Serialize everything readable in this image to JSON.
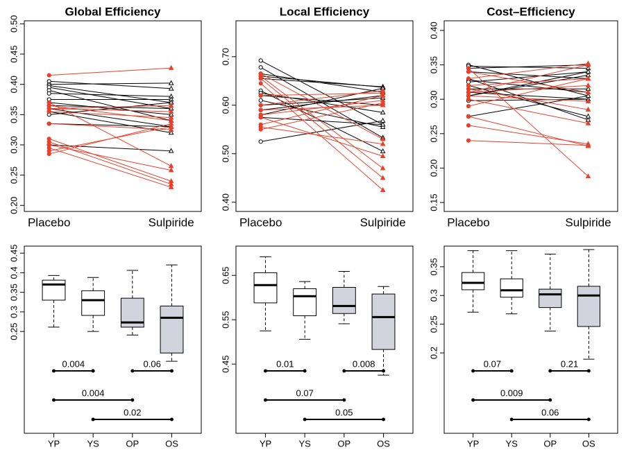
{
  "chart_data": [
    {
      "type": "slope",
      "title": "Global Efficiency",
      "categories": [
        "Placebo",
        "Sulpiride"
      ],
      "ylim": [
        0.19,
        0.505
      ],
      "yticks": [
        {
          "value": 0.2,
          "label": "0.20"
        },
        0.25,
        {
          "value": 0.3,
          "label": "0.30"
        },
        0.35,
        {
          "value": 0.4,
          "label": "0.40"
        },
        0.45,
        {
          "value": 0.5,
          "label": "0.50"
        }
      ],
      "series": [
        {
          "color": "#000000",
          "filled": false,
          "values": [
            0.405,
            0.393
          ]
        },
        {
          "color": "#000000",
          "filled": false,
          "values": [
            0.4,
            0.402
          ]
        },
        {
          "color": "#000000",
          "filled": false,
          "values": [
            0.398,
            0.37
          ]
        },
        {
          "color": "#000000",
          "filled": false,
          "values": [
            0.395,
            0.36
          ]
        },
        {
          "color": "#000000",
          "filled": false,
          "values": [
            0.39,
            0.34
          ]
        },
        {
          "color": "#000000",
          "filled": false,
          "values": [
            0.385,
            0.38
          ]
        },
        {
          "color": "#000000",
          "filled": false,
          "values": [
            0.375,
            0.375
          ]
        },
        {
          "color": "#000000",
          "filled": false,
          "values": [
            0.37,
            0.35
          ]
        },
        {
          "color": "#000000",
          "filled": false,
          "values": [
            0.36,
            0.33
          ]
        },
        {
          "color": "#000000",
          "filled": false,
          "values": [
            0.355,
            0.32
          ]
        },
        {
          "color": "#000000",
          "filled": false,
          "values": [
            0.35,
            0.37
          ]
        },
        {
          "color": "#000000",
          "filled": false,
          "values": [
            0.335,
            0.33
          ]
        },
        {
          "color": "#000000",
          "filled": false,
          "values": [
            0.3,
            0.29
          ]
        },
        {
          "color": "#000000",
          "filled": false,
          "values": [
            0.365,
            0.36
          ]
        },
        {
          "color": "#e8402a",
          "filled": true,
          "values": [
            0.415,
            0.427
          ]
        },
        {
          "color": "#e8402a",
          "filled": true,
          "values": [
            0.37,
            0.265
          ]
        },
        {
          "color": "#e8402a",
          "filled": true,
          "values": [
            0.365,
            0.34
          ]
        },
        {
          "color": "#e8402a",
          "filled": true,
          "values": [
            0.36,
            0.365
          ]
        },
        {
          "color": "#e8402a",
          "filled": true,
          "values": [
            0.355,
            0.345
          ]
        },
        {
          "color": "#e8402a",
          "filled": true,
          "values": [
            0.335,
            0.325
          ]
        },
        {
          "color": "#e8402a",
          "filled": true,
          "values": [
            0.31,
            0.24
          ]
        },
        {
          "color": "#e8402a",
          "filled": true,
          "values": [
            0.305,
            0.235
          ]
        },
        {
          "color": "#e8402a",
          "filled": true,
          "values": [
            0.3,
            0.258
          ]
        },
        {
          "color": "#e8402a",
          "filled": true,
          "values": [
            0.295,
            0.23
          ]
        },
        {
          "color": "#e8402a",
          "filled": true,
          "values": [
            0.29,
            0.33
          ]
        },
        {
          "color": "#e8402a",
          "filled": true,
          "values": [
            0.285,
            0.335
          ]
        },
        {
          "color": "#e8402a",
          "filled": true,
          "values": [
            0.36,
            0.355
          ]
        }
      ]
    },
    {
      "type": "slope",
      "title": "Local Efficiency",
      "categories": [
        "Placebo",
        "Sulpiride"
      ],
      "ylim": [
        0.381,
        0.774
      ],
      "yticks": [
        {
          "value": 0.4,
          "label": "0.40"
        },
        {
          "value": 0.5,
          "label": "0.50"
        },
        {
          "value": 0.6,
          "label": "0.60"
        },
        {
          "value": 0.7,
          "label": "0.70"
        }
      ],
      "series": [
        {
          "color": "#000000",
          "filled": false,
          "values": [
            0.692,
            0.56
          ]
        },
        {
          "color": "#000000",
          "filled": false,
          "values": [
            0.678,
            0.533
          ]
        },
        {
          "color": "#000000",
          "filled": false,
          "values": [
            0.665,
            0.627
          ]
        },
        {
          "color": "#000000",
          "filled": false,
          "values": [
            0.66,
            0.637
          ]
        },
        {
          "color": "#000000",
          "filled": false,
          "values": [
            0.655,
            0.638
          ]
        },
        {
          "color": "#000000",
          "filled": false,
          "values": [
            0.63,
            0.505
          ]
        },
        {
          "color": "#000000",
          "filled": false,
          "values": [
            0.625,
            0.585
          ]
        },
        {
          "color": "#000000",
          "filled": false,
          "values": [
            0.62,
            0.6
          ]
        },
        {
          "color": "#000000",
          "filled": false,
          "values": [
            0.61,
            0.555
          ]
        },
        {
          "color": "#000000",
          "filled": false,
          "values": [
            0.6,
            0.615
          ]
        },
        {
          "color": "#000000",
          "filled": false,
          "values": [
            0.59,
            0.62
          ]
        },
        {
          "color": "#000000",
          "filled": false,
          "values": [
            0.58,
            0.635
          ]
        },
        {
          "color": "#000000",
          "filled": false,
          "values": [
            0.575,
            0.56
          ]
        },
        {
          "color": "#000000",
          "filled": false,
          "values": [
            0.525,
            0.568
          ]
        },
        {
          "color": "#e8402a",
          "filled": true,
          "values": [
            0.665,
            0.53
          ]
        },
        {
          "color": "#e8402a",
          "filled": true,
          "values": [
            0.66,
            0.47
          ]
        },
        {
          "color": "#e8402a",
          "filled": true,
          "values": [
            0.655,
            0.45
          ]
        },
        {
          "color": "#e8402a",
          "filled": true,
          "values": [
            0.645,
            0.425
          ]
        },
        {
          "color": "#e8402a",
          "filled": true,
          "values": [
            0.62,
            0.625
          ]
        },
        {
          "color": "#e8402a",
          "filled": true,
          "values": [
            0.6,
            0.63
          ]
        },
        {
          "color": "#e8402a",
          "filled": true,
          "values": [
            0.59,
            0.6
          ]
        },
        {
          "color": "#e8402a",
          "filled": true,
          "values": [
            0.58,
            0.61
          ]
        },
        {
          "color": "#e8402a",
          "filled": true,
          "values": [
            0.575,
            0.495
          ]
        },
        {
          "color": "#e8402a",
          "filled": true,
          "values": [
            0.56,
            0.62
          ]
        },
        {
          "color": "#e8402a",
          "filled": true,
          "values": [
            0.555,
            0.52
          ]
        },
        {
          "color": "#e8402a",
          "filled": true,
          "values": [
            0.55,
            0.605
          ]
        }
      ]
    },
    {
      "type": "slope",
      "title": "Cost–Efficiency",
      "categories": [
        "Placebo",
        "Sulpiride"
      ],
      "ylim": [
        0.137,
        0.414
      ],
      "yticks": [
        0.15,
        {
          "value": 0.2,
          "label": "0.20"
        },
        0.25,
        {
          "value": 0.3,
          "label": "0.30"
        },
        0.35,
        {
          "value": 0.4,
          "label": "0.40"
        }
      ],
      "series": [
        {
          "color": "#000000",
          "filled": false,
          "values": [
            0.35,
            0.305
          ]
        },
        {
          "color": "#000000",
          "filled": false,
          "values": [
            0.348,
            0.345
          ]
        },
        {
          "color": "#000000",
          "filled": false,
          "values": [
            0.345,
            0.35
          ]
        },
        {
          "color": "#000000",
          "filled": false,
          "values": [
            0.34,
            0.33
          ]
        },
        {
          "color": "#000000",
          "filled": false,
          "values": [
            0.33,
            0.27
          ]
        },
        {
          "color": "#000000",
          "filled": false,
          "values": [
            0.328,
            0.31
          ]
        },
        {
          "color": "#000000",
          "filled": false,
          "values": [
            0.325,
            0.34
          ]
        },
        {
          "color": "#000000",
          "filled": false,
          "values": [
            0.32,
            0.275
          ]
        },
        {
          "color": "#000000",
          "filled": false,
          "values": [
            0.315,
            0.315
          ]
        },
        {
          "color": "#000000",
          "filled": false,
          "values": [
            0.31,
            0.3
          ]
        },
        {
          "color": "#000000",
          "filled": false,
          "values": [
            0.305,
            0.335
          ]
        },
        {
          "color": "#000000",
          "filled": false,
          "values": [
            0.298,
            0.3
          ]
        },
        {
          "color": "#000000",
          "filled": false,
          "values": [
            0.275,
            0.305
          ]
        },
        {
          "color": "#000000",
          "filled": false,
          "values": [
            0.305,
            0.34
          ]
        },
        {
          "color": "#e8402a",
          "filled": true,
          "values": [
            0.345,
            0.188
          ]
        },
        {
          "color": "#e8402a",
          "filled": true,
          "values": [
            0.34,
            0.31
          ]
        },
        {
          "color": "#e8402a",
          "filled": true,
          "values": [
            0.33,
            0.352
          ]
        },
        {
          "color": "#e8402a",
          "filled": true,
          "values": [
            0.32,
            0.33
          ]
        },
        {
          "color": "#e8402a",
          "filled": true,
          "values": [
            0.315,
            0.285
          ]
        },
        {
          "color": "#e8402a",
          "filled": true,
          "values": [
            0.31,
            0.32
          ]
        },
        {
          "color": "#e8402a",
          "filled": true,
          "values": [
            0.305,
            0.297
          ]
        },
        {
          "color": "#e8402a",
          "filled": true,
          "values": [
            0.3,
            0.265
          ]
        },
        {
          "color": "#e8402a",
          "filled": true,
          "values": [
            0.29,
            0.33
          ]
        },
        {
          "color": "#e8402a",
          "filled": true,
          "values": [
            0.275,
            0.232
          ]
        },
        {
          "color": "#e8402a",
          "filled": true,
          "values": [
            0.262,
            0.235
          ]
        },
        {
          "color": "#e8402a",
          "filled": true,
          "values": [
            0.24,
            0.233
          ]
        },
        {
          "color": "#e8402a",
          "filled": true,
          "values": [
            0.31,
            0.35
          ]
        }
      ]
    },
    {
      "type": "box",
      "categories": [
        "YP",
        "YS",
        "OP",
        "OS"
      ],
      "ylim": [
        -0.01,
        0.468
      ],
      "yticks": [
        0.25,
        0.3,
        0.35,
        0.4,
        0.45
      ],
      "boxes": [
        {
          "low": 0.261,
          "q1": 0.33,
          "median": 0.37,
          "q3": 0.381,
          "high": 0.393,
          "color": "#ffffff"
        },
        {
          "low": 0.25,
          "q1": 0.291,
          "median": 0.33,
          "q3": 0.354,
          "high": 0.388,
          "color": "#ffffff"
        },
        {
          "low": 0.241,
          "q1": 0.261,
          "median": 0.273,
          "q3": 0.335,
          "high": 0.406,
          "color": "#d3d3de"
        },
        {
          "low": 0.174,
          "q1": 0.195,
          "median": 0.285,
          "q3": 0.315,
          "high": 0.42,
          "color": "#d3d3de"
        }
      ],
      "brackets": [
        {
          "between": [
            "YP",
            "YS"
          ],
          "p": 0.004
        },
        {
          "between": [
            "OP",
            "OS"
          ],
          "p": 0.06
        },
        {
          "between": [
            "YP",
            "OP"
          ],
          "p": 0.004
        },
        {
          "between": [
            "YS",
            "OS"
          ],
          "p": 0.02
        }
      ]
    },
    {
      "type": "box",
      "categories": [
        "YP",
        "YS",
        "OP",
        "OS"
      ],
      "ylim": [
        0.294,
        0.716
      ],
      "yticks": [
        0.45,
        0.55,
        0.65
      ],
      "boxes": [
        {
          "low": 0.525,
          "q1": 0.588,
          "median": 0.628,
          "q3": 0.656,
          "high": 0.692,
          "color": "#ffffff"
        },
        {
          "low": 0.506,
          "q1": 0.559,
          "median": 0.603,
          "q3": 0.62,
          "high": 0.636,
          "color": "#ffffff"
        },
        {
          "low": 0.541,
          "q1": 0.564,
          "median": 0.581,
          "q3": 0.623,
          "high": 0.659,
          "color": "#d3d3de"
        },
        {
          "low": 0.425,
          "q1": 0.483,
          "median": 0.556,
          "q3": 0.608,
          "high": 0.625,
          "color": "#d3d3de"
        }
      ],
      "brackets": [
        {
          "between": [
            "YP",
            "YS"
          ],
          "p": 0.01
        },
        {
          "between": [
            "OP",
            "OS"
          ],
          "p": 0.008
        },
        {
          "between": [
            "YP",
            "OP"
          ],
          "p": 0.07
        },
        {
          "between": [
            "YS",
            "OS"
          ],
          "p": 0.05
        }
      ]
    },
    {
      "type": "box",
      "categories": [
        "YP",
        "YS",
        "OP",
        "OS"
      ],
      "ylim": [
        0.06,
        0.386
      ],
      "yticks": [
        0.2,
        0.25,
        0.3,
        0.35
      ],
      "boxes": [
        {
          "low": 0.271,
          "q1": 0.31,
          "median": 0.322,
          "q3": 0.34,
          "high": 0.378,
          "color": "#ffffff"
        },
        {
          "low": 0.268,
          "q1": 0.297,
          "median": 0.309,
          "q3": 0.329,
          "high": 0.378,
          "color": "#ffffff"
        },
        {
          "low": 0.238,
          "q1": 0.279,
          "median": 0.302,
          "q3": 0.311,
          "high": 0.372,
          "color": "#d3d3de"
        },
        {
          "low": 0.189,
          "q1": 0.246,
          "median": 0.3,
          "q3": 0.316,
          "high": 0.38,
          "color": "#d3d3de"
        }
      ],
      "brackets": [
        {
          "between": [
            "YP",
            "YS"
          ],
          "p": 0.07
        },
        {
          "between": [
            "OP",
            "OS"
          ],
          "p": 0.21
        },
        {
          "between": [
            "YP",
            "OP"
          ],
          "p": 0.009
        },
        {
          "between": [
            "YS",
            "OS"
          ],
          "p": 0.06
        }
      ]
    }
  ]
}
